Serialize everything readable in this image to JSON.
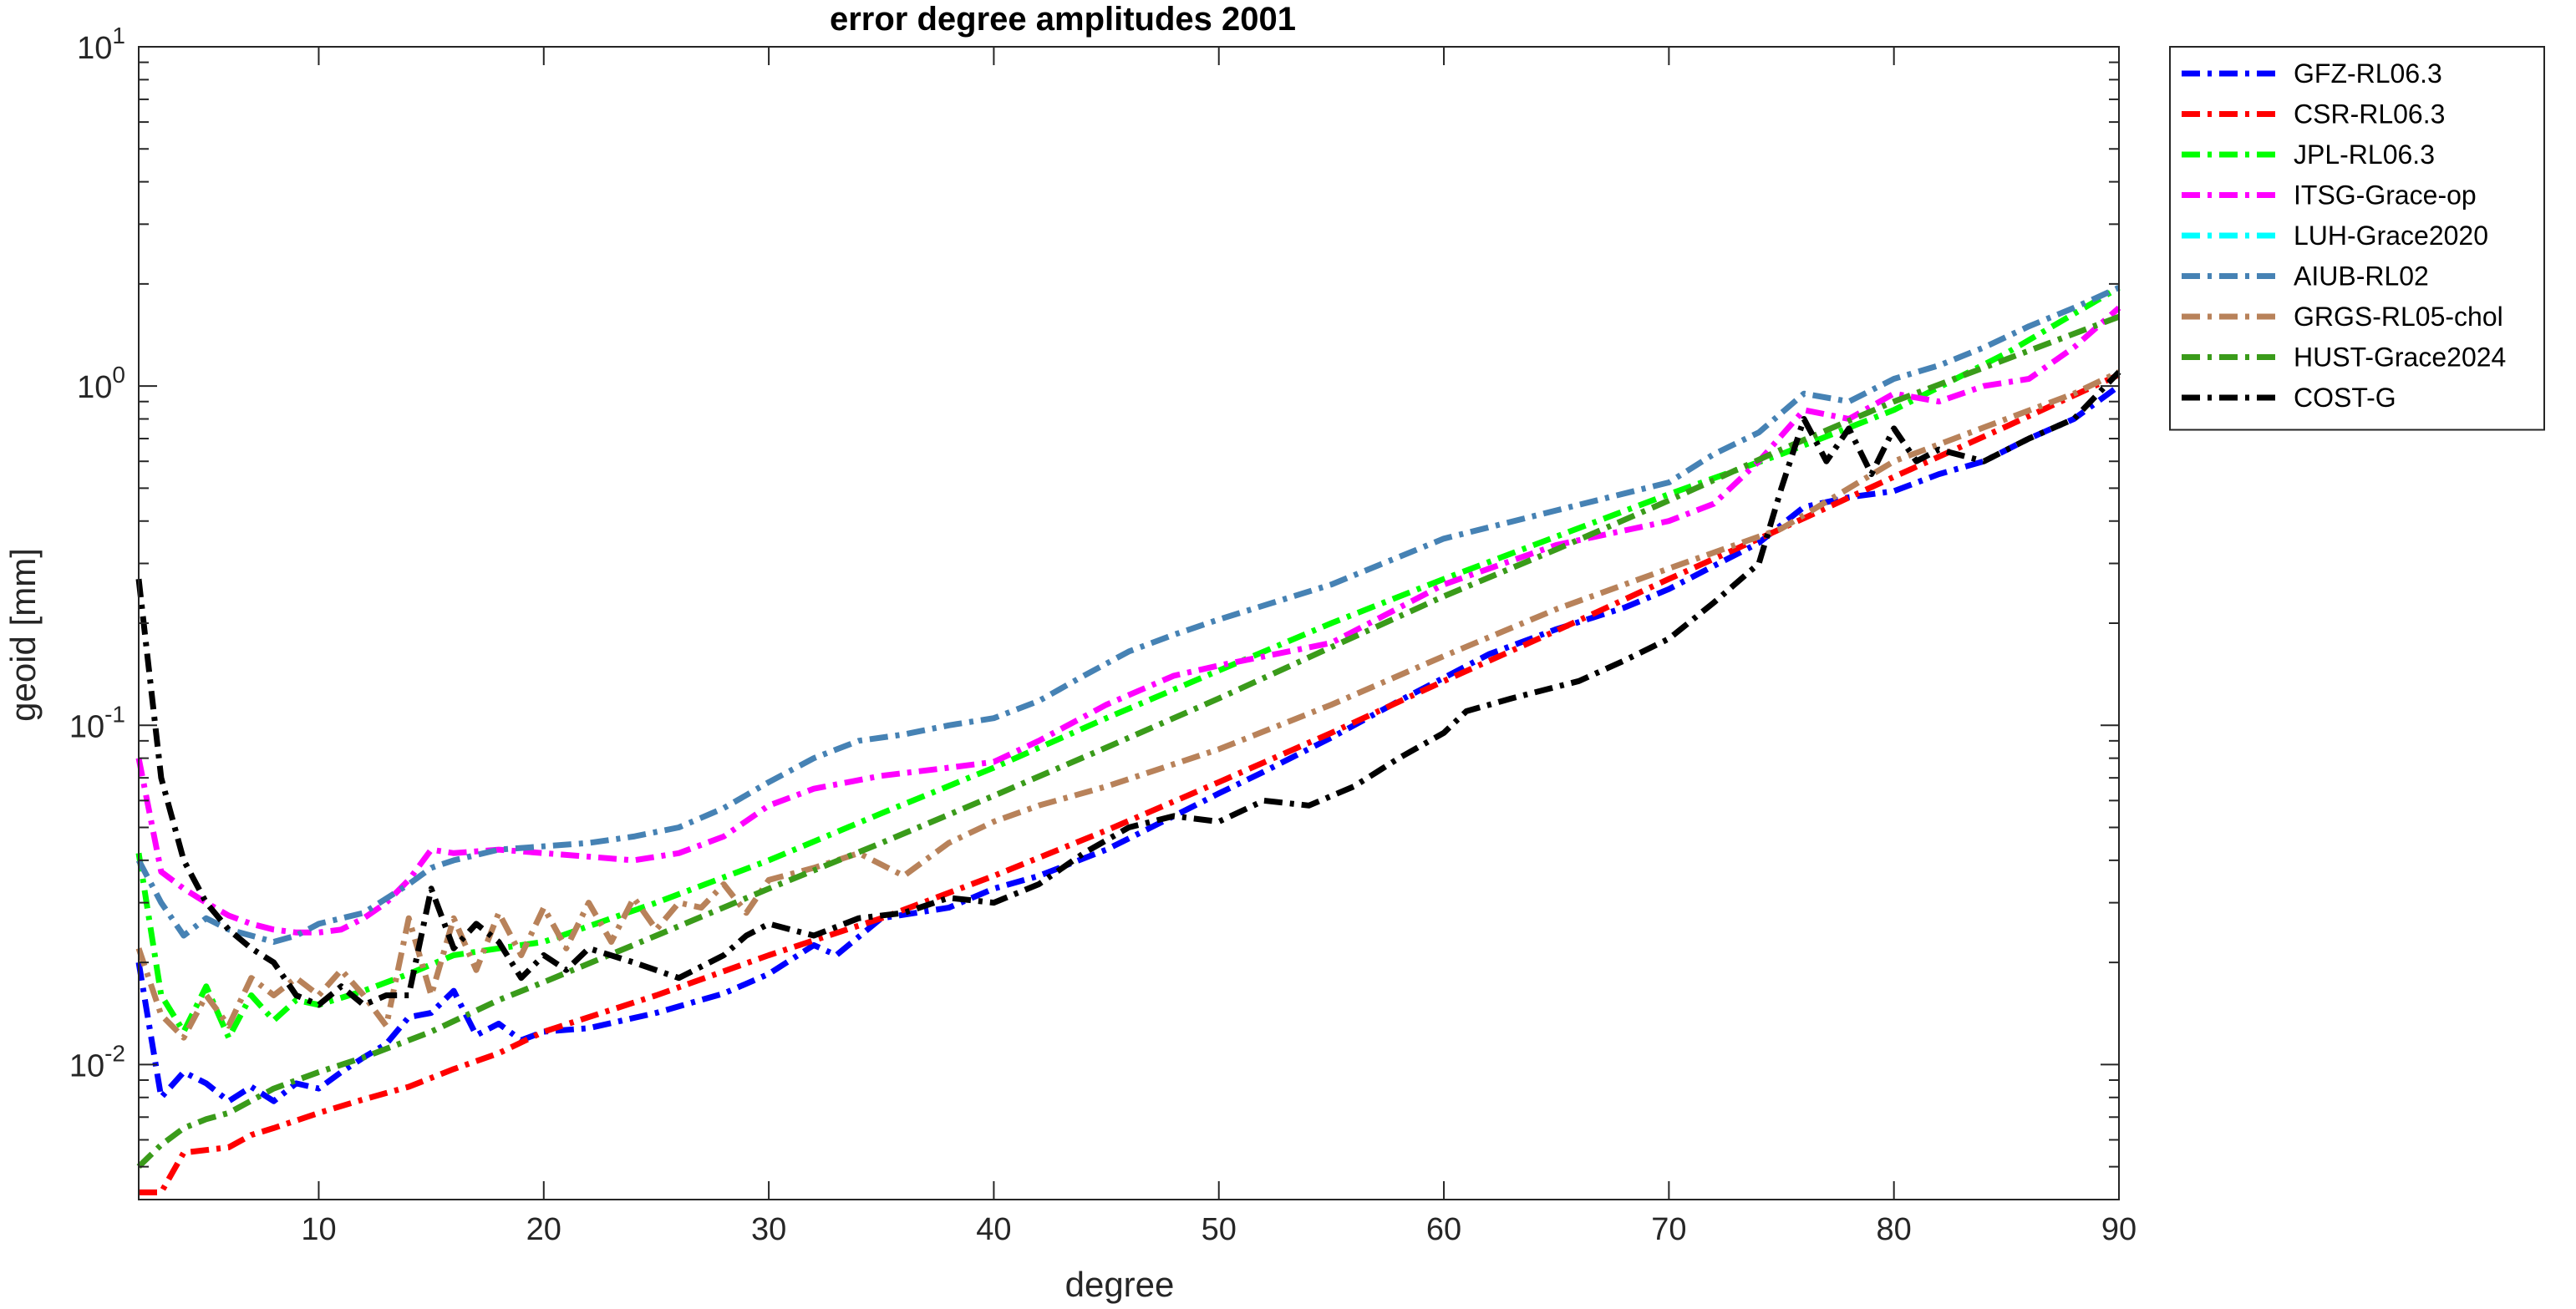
{
  "chart_data": {
    "type": "line",
    "title": "error degree amplitudes 2001",
    "xlabel": "degree",
    "ylabel": "geoid [mm]",
    "xlim": [
      2,
      90
    ],
    "ylim": [
      0.004,
      10
    ],
    "yscale": "log",
    "x_ticks": [
      10,
      20,
      30,
      40,
      50,
      60,
      70,
      80,
      90
    ],
    "x_tick_labels": [
      "10",
      "20",
      "30",
      "40",
      "50",
      "60",
      "70",
      "80",
      "90"
    ],
    "y_ticks": [
      {
        "value": 0.01,
        "base": "10",
        "exp": "-2"
      },
      {
        "value": 0.1,
        "base": "10",
        "exp": "-1"
      },
      {
        "value": 1,
        "base": "10",
        "exp": "0"
      },
      {
        "value": 10,
        "base": "10",
        "exp": "1"
      }
    ],
    "grid": false,
    "legend_position": "outside-top-right",
    "series": [
      {
        "name": "GFZ-RL06.3",
        "color": "#0000ff",
        "x": [
          2,
          3,
          4,
          5,
          6,
          7,
          8,
          9,
          10,
          11,
          12,
          13,
          14,
          15,
          16,
          17,
          18,
          19,
          20,
          22,
          25,
          28,
          30,
          32,
          33,
          35,
          38,
          40,
          42,
          45,
          48,
          50,
          52,
          55,
          58,
          60,
          62,
          65,
          68,
          70,
          72,
          74,
          76,
          78,
          80,
          82,
          84,
          86,
          88,
          90
        ],
        "y": [
          0.02,
          0.008,
          0.0095,
          0.0088,
          0.0078,
          0.0086,
          0.0078,
          0.0088,
          0.0085,
          0.0095,
          0.0105,
          0.0115,
          0.0138,
          0.0142,
          0.0165,
          0.0122,
          0.0132,
          0.0118,
          0.0125,
          0.0128,
          0.0142,
          0.0162,
          0.0185,
          0.0225,
          0.021,
          0.027,
          0.029,
          0.033,
          0.036,
          0.043,
          0.054,
          0.063,
          0.073,
          0.092,
          0.118,
          0.138,
          0.162,
          0.192,
          0.222,
          0.252,
          0.295,
          0.345,
          0.44,
          0.47,
          0.49,
          0.55,
          0.6,
          0.7,
          0.8,
          1.0
        ]
      },
      {
        "name": "CSR-RL06.3",
        "color": "#ff0000",
        "x": [
          2,
          3,
          4,
          5,
          6,
          7,
          8,
          10,
          12,
          14,
          16,
          18,
          20,
          25,
          30,
          35,
          40,
          45,
          50,
          55,
          60,
          65,
          70,
          75,
          80,
          85,
          90
        ],
        "y": [
          0.0042,
          0.0042,
          0.0055,
          0.0056,
          0.0057,
          0.0062,
          0.0065,
          0.0072,
          0.0079,
          0.0086,
          0.0097,
          0.0108,
          0.0125,
          0.016,
          0.021,
          0.027,
          0.036,
          0.049,
          0.068,
          0.095,
          0.135,
          0.19,
          0.27,
          0.38,
          0.54,
          0.76,
          1.08
        ]
      },
      {
        "name": "JPL-RL06.3",
        "color": "#00ff00",
        "x": [
          2,
          3,
          4,
          5,
          6,
          7,
          8,
          9,
          10,
          12,
          14,
          16,
          18,
          20,
          25,
          30,
          35,
          40,
          45,
          50,
          55,
          60,
          65,
          70,
          75,
          80,
          85,
          90
        ],
        "y": [
          0.042,
          0.016,
          0.0125,
          0.017,
          0.012,
          0.016,
          0.0135,
          0.0155,
          0.015,
          0.0165,
          0.0185,
          0.021,
          0.022,
          0.023,
          0.03,
          0.04,
          0.055,
          0.075,
          0.105,
          0.145,
          0.2,
          0.27,
          0.36,
          0.48,
          0.63,
          0.85,
          1.25,
          1.95
        ]
      },
      {
        "name": "ITSG-Grace-op",
        "color": "#ff00ff",
        "x": [
          2,
          3,
          4,
          5,
          6,
          7,
          8,
          9,
          10,
          11,
          12,
          13,
          14,
          15,
          16,
          18,
          20,
          22,
          24,
          26,
          28,
          30,
          32,
          35,
          38,
          40,
          42,
          45,
          48,
          50,
          55,
          60,
          65,
          70,
          72,
          74,
          76,
          78,
          80,
          82,
          84,
          86,
          88,
          90
        ],
        "y": [
          0.08,
          0.037,
          0.033,
          0.03,
          0.0275,
          0.026,
          0.025,
          0.0245,
          0.0245,
          0.025,
          0.027,
          0.03,
          0.035,
          0.043,
          0.042,
          0.043,
          0.042,
          0.041,
          0.04,
          0.042,
          0.047,
          0.058,
          0.065,
          0.071,
          0.075,
          0.078,
          0.09,
          0.115,
          0.14,
          0.15,
          0.175,
          0.26,
          0.34,
          0.4,
          0.45,
          0.6,
          0.85,
          0.8,
          0.95,
          0.9,
          1.0,
          1.05,
          1.3,
          1.7
        ]
      },
      {
        "name": "LUH-Grace2020",
        "color": "#00ffff",
        "x": [],
        "y": []
      },
      {
        "name": "AIUB-RL02",
        "color": "#4682b4",
        "x": [
          2,
          3,
          4,
          5,
          6,
          7,
          8,
          9,
          10,
          12,
          14,
          15,
          16,
          18,
          20,
          22,
          24,
          26,
          28,
          30,
          32,
          34,
          36,
          38,
          40,
          42,
          44,
          46,
          48,
          50,
          55,
          60,
          65,
          70,
          72,
          74,
          76,
          78,
          80,
          82,
          84,
          86,
          88,
          90
        ],
        "y": [
          0.04,
          0.03,
          0.024,
          0.027,
          0.025,
          0.024,
          0.023,
          0.024,
          0.026,
          0.028,
          0.034,
          0.038,
          0.04,
          0.043,
          0.044,
          0.045,
          0.047,
          0.05,
          0.057,
          0.068,
          0.08,
          0.09,
          0.094,
          0.1,
          0.105,
          0.118,
          0.14,
          0.165,
          0.185,
          0.205,
          0.26,
          0.355,
          0.43,
          0.52,
          0.63,
          0.73,
          0.95,
          0.9,
          1.05,
          1.15,
          1.3,
          1.5,
          1.7,
          1.95
        ]
      },
      {
        "name": "GRGS-RL05-chol",
        "color": "#b8825a",
        "x": [
          2,
          3,
          4,
          5,
          6,
          7,
          8,
          9,
          10,
          11,
          12,
          13,
          14,
          15,
          16,
          17,
          18,
          19,
          20,
          21,
          22,
          23,
          24,
          25,
          26,
          27,
          28,
          29,
          30,
          32,
          34,
          36,
          38,
          40,
          42,
          45,
          50,
          55,
          60,
          65,
          70,
          75,
          80,
          85,
          88,
          90
        ],
        "y": [
          0.022,
          0.014,
          0.012,
          0.016,
          0.013,
          0.018,
          0.016,
          0.018,
          0.016,
          0.019,
          0.016,
          0.013,
          0.027,
          0.016,
          0.027,
          0.019,
          0.028,
          0.021,
          0.029,
          0.022,
          0.03,
          0.023,
          0.031,
          0.025,
          0.03,
          0.029,
          0.034,
          0.028,
          0.035,
          0.038,
          0.042,
          0.036,
          0.045,
          0.052,
          0.058,
          0.066,
          0.085,
          0.115,
          0.16,
          0.22,
          0.29,
          0.38,
          0.6,
          0.8,
          0.95,
          1.1
        ]
      },
      {
        "name": "HUST-Grace2024",
        "color": "#3a9b1a",
        "x": [
          2,
          3,
          4,
          5,
          6,
          8,
          10,
          12,
          15,
          18,
          20,
          25,
          30,
          35,
          40,
          45,
          50,
          55,
          60,
          65,
          70,
          75,
          80,
          85,
          90
        ],
        "y": [
          0.005,
          0.0058,
          0.0065,
          0.0069,
          0.0072,
          0.0085,
          0.0095,
          0.0105,
          0.0125,
          0.0155,
          0.0175,
          0.024,
          0.033,
          0.045,
          0.062,
          0.086,
          0.12,
          0.17,
          0.24,
          0.33,
          0.46,
          0.65,
          0.9,
          1.2,
          1.6
        ]
      },
      {
        "name": "COST-G",
        "color": "#000000",
        "x": [
          2,
          3,
          4,
          5,
          6,
          7,
          8,
          9,
          10,
          11,
          12,
          13,
          14,
          15,
          16,
          17,
          18,
          19,
          20,
          21,
          22,
          24,
          26,
          28,
          29,
          30,
          32,
          34,
          36,
          38,
          40,
          42,
          44,
          46,
          48,
          50,
          52,
          54,
          56,
          58,
          60,
          61,
          63,
          66,
          68,
          70,
          72,
          74,
          75,
          76,
          77,
          78,
          79,
          80,
          81,
          82,
          84,
          86,
          88,
          90
        ],
        "y": [
          0.27,
          0.07,
          0.04,
          0.03,
          0.025,
          0.022,
          0.02,
          0.016,
          0.015,
          0.017,
          0.015,
          0.016,
          0.016,
          0.033,
          0.022,
          0.026,
          0.023,
          0.018,
          0.021,
          0.019,
          0.022,
          0.02,
          0.018,
          0.021,
          0.024,
          0.026,
          0.024,
          0.027,
          0.028,
          0.031,
          0.03,
          0.034,
          0.042,
          0.05,
          0.054,
          0.052,
          0.06,
          0.058,
          0.066,
          0.08,
          0.095,
          0.11,
          0.12,
          0.135,
          0.155,
          0.18,
          0.23,
          0.3,
          0.5,
          0.8,
          0.6,
          0.75,
          0.55,
          0.75,
          0.6,
          0.65,
          0.6,
          0.7,
          0.8,
          1.1
        ]
      }
    ]
  }
}
